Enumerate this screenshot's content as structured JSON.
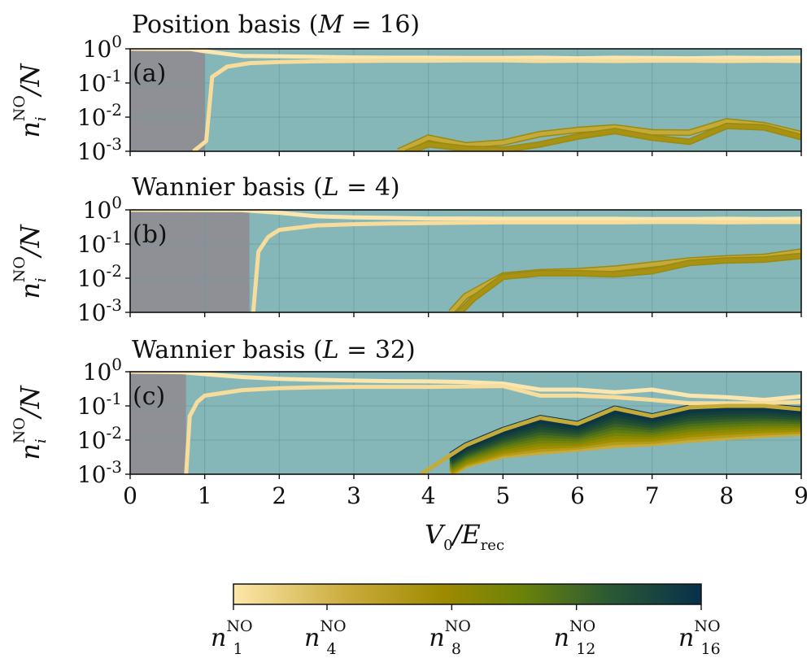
{
  "chart_data": [
    {
      "type": "line",
      "panel_label": "(a)",
      "title": "Position basis (M = 16)",
      "title_parts": {
        "text": "Position basis (",
        "var": "M",
        "eq": " = 16)"
      },
      "ylabel": "n_i^NO / N",
      "xlim": [
        0,
        9
      ],
      "ylim_log10": [
        -3,
        0
      ],
      "gray_region_end": 1.0,
      "series": [
        {
          "name": "n1",
          "x": [
            0,
            0.8,
            1.0,
            1.5,
            2,
            2.5,
            3,
            3.5,
            4,
            4.5,
            5,
            5.5,
            6,
            6.5,
            7,
            7.5,
            8,
            8.5,
            9
          ],
          "y": [
            1.0,
            0.99,
            0.85,
            0.62,
            0.6,
            0.58,
            0.56,
            0.55,
            0.55,
            0.54,
            0.54,
            0.55,
            0.53,
            0.55,
            0.54,
            0.53,
            0.55,
            0.54,
            0.55
          ]
        },
        {
          "name": "n2",
          "x": [
            0.85,
            0.95,
            1.02,
            1.1,
            1.3,
            1.6,
            2,
            2.5,
            3,
            3.5,
            4,
            4.5,
            5,
            5.5,
            6,
            6.5,
            7,
            7.5,
            8,
            8.5,
            9
          ],
          "y": [
            0.001,
            0.0015,
            0.002,
            0.15,
            0.3,
            0.38,
            0.41,
            0.43,
            0.44,
            0.45,
            0.45,
            0.46,
            0.46,
            0.44,
            0.45,
            0.44,
            0.45,
            0.45,
            0.44,
            0.45,
            0.44
          ]
        },
        {
          "name": "n3",
          "x": [
            3.6,
            4,
            4.5,
            5,
            5.5,
            6,
            6.5,
            7,
            7.5,
            8,
            8.5,
            9
          ],
          "y": [
            0.001,
            0.0025,
            0.0015,
            0.0018,
            0.0032,
            0.0042,
            0.005,
            0.0036,
            0.0035,
            0.0075,
            0.0058,
            0.0032
          ]
        },
        {
          "name": "n4",
          "x": [
            3.7,
            4,
            4.5,
            5,
            5.5,
            6,
            6.5,
            7,
            7.5,
            8,
            8.5,
            9
          ],
          "y": [
            0.0009,
            0.0016,
            0.0012,
            0.0011,
            0.0016,
            0.0027,
            0.0039,
            0.0025,
            0.0019,
            0.0055,
            0.005,
            0.0026
          ]
        }
      ]
    },
    {
      "type": "line",
      "panel_label": "(b)",
      "title": "Wannier basis (L = 4)",
      "title_parts": {
        "text": "Wannier basis (",
        "var": "L",
        "eq": " = 4)"
      },
      "ylabel": "n_i^NO / N",
      "xlim": [
        0,
        9
      ],
      "ylim_log10": [
        -3,
        0
      ],
      "gray_region_end": 1.6,
      "series": [
        {
          "name": "n1",
          "x": [
            0,
            1.5,
            2,
            2.5,
            3,
            3.5,
            4,
            4.5,
            5,
            5.5,
            6,
            6.5,
            7,
            7.5,
            8,
            8.5,
            9
          ],
          "y": [
            1.0,
            0.98,
            0.82,
            0.65,
            0.6,
            0.58,
            0.56,
            0.56,
            0.55,
            0.55,
            0.55,
            0.55,
            0.54,
            0.54,
            0.55,
            0.54,
            0.55
          ]
        },
        {
          "name": "n2",
          "x": [
            1.65,
            1.72,
            1.85,
            2,
            2.5,
            3,
            3.5,
            4,
            4.5,
            5,
            5.5,
            6,
            6.5,
            7,
            7.5,
            8,
            8.5,
            9
          ],
          "y": [
            0.001,
            0.06,
            0.16,
            0.26,
            0.35,
            0.38,
            0.4,
            0.41,
            0.42,
            0.43,
            0.43,
            0.43,
            0.43,
            0.44,
            0.44,
            0.43,
            0.44,
            0.44
          ]
        },
        {
          "name": "n3",
          "x": [
            4.3,
            4.5,
            5,
            5.5,
            6,
            6.5,
            7,
            7.5,
            8,
            8.5,
            9
          ],
          "y": [
            0.001,
            0.003,
            0.012,
            0.015,
            0.016,
            0.019,
            0.025,
            0.033,
            0.038,
            0.042,
            0.06
          ]
        },
        {
          "name": "n4",
          "x": [
            4.4,
            4.6,
            5,
            5.5,
            6,
            6.5,
            7,
            7.5,
            8,
            8.5,
            9
          ],
          "y": [
            0.0009,
            0.0025,
            0.011,
            0.014,
            0.014,
            0.013,
            0.016,
            0.028,
            0.033,
            0.035,
            0.045
          ]
        }
      ]
    },
    {
      "type": "line",
      "panel_label": "(c)",
      "title": "Wannier basis (L = 32)",
      "title_parts": {
        "text": "Wannier basis (",
        "var": "L",
        "eq": " = 32)"
      },
      "ylabel": "n_i^NO / N",
      "xlim": [
        0,
        9
      ],
      "ylim_log10": [
        -3,
        0
      ],
      "gray_region_end": 0.75,
      "series": [
        {
          "name": "n1",
          "x": [
            0,
            0.7,
            1,
            1.5,
            2,
            2.5,
            3,
            3.5,
            4,
            4.5,
            5,
            5.5,
            6,
            6.5,
            7,
            7.5,
            8,
            8.5,
            9
          ],
          "y": [
            1.0,
            0.97,
            0.85,
            0.7,
            0.62,
            0.58,
            0.55,
            0.53,
            0.52,
            0.5,
            0.45,
            0.3,
            0.3,
            0.25,
            0.3,
            0.2,
            0.18,
            0.15,
            0.19
          ]
        },
        {
          "name": "n2",
          "x": [
            0.75,
            0.8,
            0.9,
            1.0,
            1.5,
            2,
            2.5,
            3,
            3.5,
            4,
            4.5,
            5,
            5.5,
            6,
            6.5,
            7,
            7.5,
            8,
            8.5,
            9
          ],
          "y": [
            0.001,
            0.05,
            0.13,
            0.2,
            0.29,
            0.33,
            0.35,
            0.36,
            0.36,
            0.36,
            0.37,
            0.38,
            0.2,
            0.2,
            0.18,
            0.15,
            0.12,
            0.12,
            0.12,
            0.13
          ]
        },
        {
          "name": "n3",
          "x": [
            3.9,
            4,
            4.5,
            5,
            5.5,
            6,
            6.5,
            7,
            7.5,
            8,
            8.5,
            9
          ],
          "y": [
            0.001,
            0.0014,
            0.007,
            0.02,
            0.045,
            0.03,
            0.085,
            0.05,
            0.09,
            0.1,
            0.1,
            0.08
          ]
        },
        {
          "name": "n16",
          "x": [
            4.3,
            4.5,
            5,
            5.5,
            6,
            6.5,
            7,
            7.5,
            8,
            8.5,
            9
          ],
          "y": [
            0.001,
            0.0018,
            0.0035,
            0.0045,
            0.0055,
            0.007,
            0.008,
            0.01,
            0.012,
            0.014,
            0.016
          ]
        }
      ]
    }
  ],
  "xaxis": {
    "label_main": "V",
    "label_sub0": "0",
    "label_slash": "/E",
    "label_sub_rec": "rec",
    "ticks": [
      0,
      1,
      2,
      3,
      4,
      5,
      6,
      7,
      8,
      9
    ],
    "tick_labels": [
      "0",
      "1",
      "2",
      "3",
      "4",
      "5",
      "6",
      "7",
      "8",
      "9"
    ]
  },
  "yaxis": {
    "tick_exponents": [
      "0",
      "-1",
      "-2",
      "-3"
    ],
    "tick_base": "10",
    "label_n": "n",
    "label_i": "i",
    "label_no": "NO",
    "label_over_n": "/N"
  },
  "colorbar": {
    "colors": [
      "#fbe5a6",
      "#a08900",
      "#5d7d10",
      "#1b4a3a",
      "#0b3040"
    ],
    "tick_labels": [
      {
        "base": "n",
        "sub": "1",
        "sup": "NO"
      },
      {
        "base": "n",
        "sub": "4",
        "sup": "NO"
      },
      {
        "base": "n",
        "sub": "8",
        "sup": "NO"
      },
      {
        "base": "n",
        "sub": "12",
        "sup": "NO"
      },
      {
        "base": "n",
        "sub": "16",
        "sup": "NO"
      }
    ],
    "tick_positions": [
      1,
      4,
      8,
      12,
      16
    ]
  },
  "colors": {
    "panel_bg": "#86b7b8",
    "gray_region": "#8f9095",
    "line_light": "#f7dc9c",
    "line_mid": "#c4aa38",
    "line_dark": "#08334a",
    "grid": "#6a9a9c"
  }
}
